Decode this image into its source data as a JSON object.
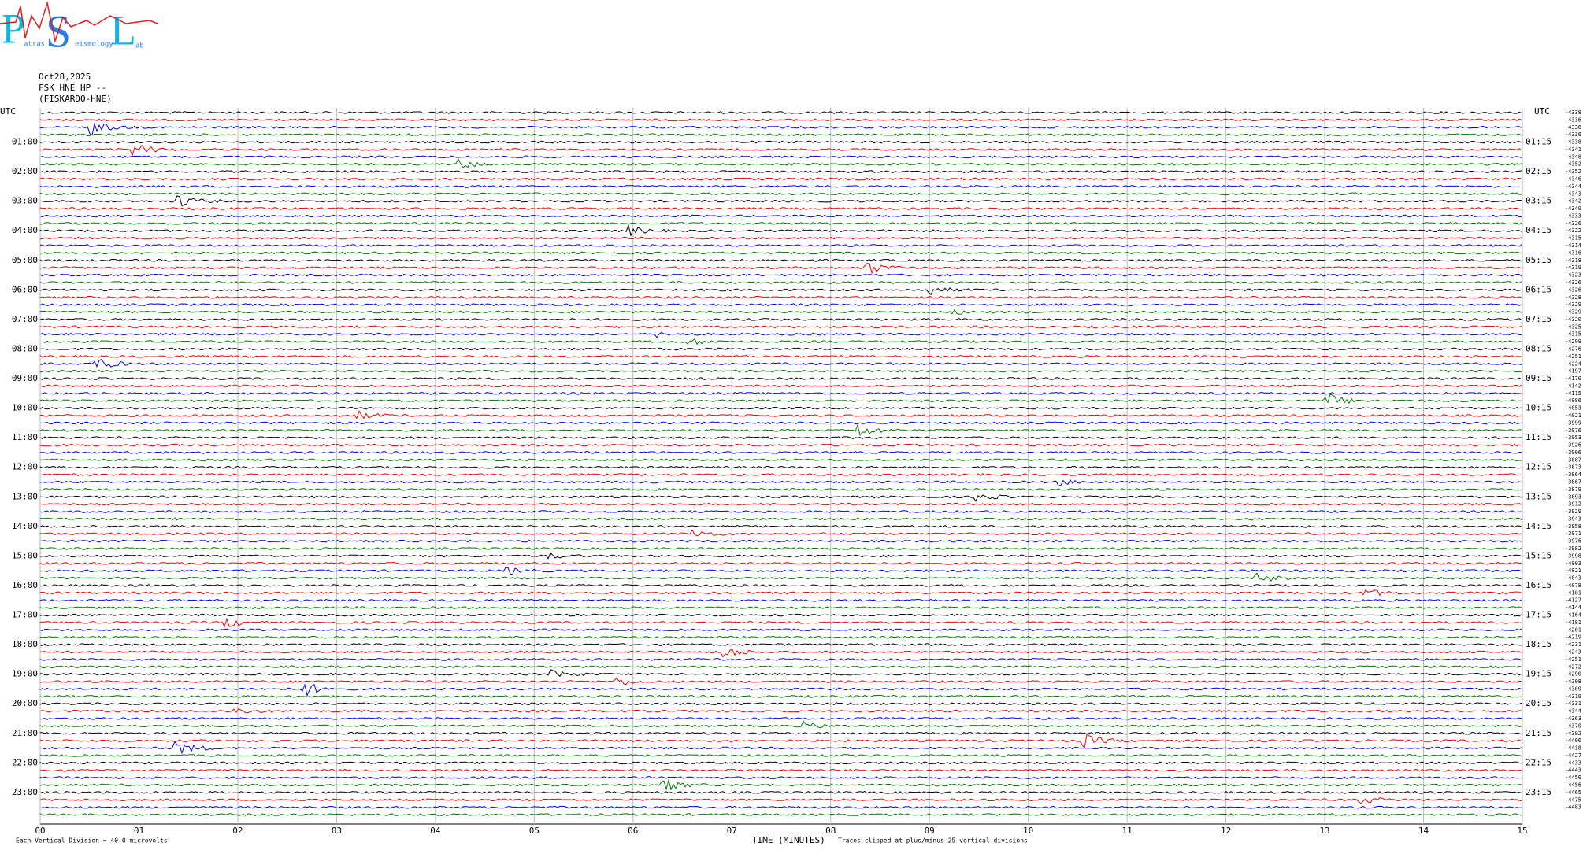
{
  "logo": {
    "p": "P",
    "s": "S",
    "l": "L",
    "small1": "atras",
    "small2": "eismology",
    "small3": "ab"
  },
  "header": {
    "date": "Oct28,2025",
    "station": "FSK HNE HP --",
    "site": "(FISKARDO-HNE)"
  },
  "left_axis": {
    "utc": "UTC",
    "times": [
      "01:00",
      "02:00",
      "03:00",
      "04:00",
      "05:00",
      "06:00",
      "07:00",
      "08:00",
      "09:00",
      "10:00",
      "11:00",
      "12:00",
      "13:00",
      "14:00",
      "15:00",
      "16:00",
      "17:00",
      "18:00",
      "19:00",
      "20:00",
      "21:00",
      "22:00",
      "23:00"
    ]
  },
  "right_axis": {
    "utc": "UTC",
    "times": [
      "01:15",
      "02:15",
      "03:15",
      "04:15",
      "05:15",
      "06:15",
      "07:15",
      "08:15",
      "09:15",
      "10:15",
      "11:15",
      "12:15",
      "13:15",
      "14:15",
      "15:15",
      "16:15",
      "17:15",
      "18:15",
      "19:15",
      "20:15",
      "21:15",
      "22:15",
      "23:15"
    ]
  },
  "offsets": [
    "-4338",
    "-4336",
    "-4336",
    "-4336",
    "-4338",
    "-4341",
    "-4348",
    "-4352",
    "-4352",
    "-4346",
    "-4344",
    "-4343",
    "-4342",
    "-4340",
    "-4333",
    "-4326",
    "-4322",
    "-4315",
    "-4314",
    "-4316",
    "-4318",
    "-4319",
    "-4323",
    "-4326",
    "-4326",
    "-4328",
    "-4329",
    "-4329",
    "-4320",
    "-4325",
    "-4315",
    "-4299",
    "-4276",
    "-4251",
    "-4224",
    "-4197",
    "-4170",
    "-4142",
    "-4115",
    "-4086",
    "-4053",
    "-4021",
    "-3999",
    "-3976",
    "-3953",
    "-3926",
    "-3906",
    "-3887",
    "-3873",
    "-3864",
    "-3867",
    "-3879",
    "-3893",
    "-3912",
    "-3929",
    "-3943",
    "-3958",
    "-3971",
    "-3976",
    "-3982",
    "-3998",
    "-4003",
    "-4021",
    "-4043",
    "-4078",
    "-4101",
    "-4127",
    "-4144",
    "-4164",
    "-4181",
    "-4201",
    "-4219",
    "-4231",
    "-4243",
    "-4251",
    "-4272",
    "-4290",
    "-4308",
    "-4309",
    "-4319",
    "-4331",
    "-4344",
    "-4363",
    "-4370",
    "-4392",
    "-4406",
    "-4418",
    "-4427",
    "-4433",
    "-4443",
    "-4450",
    "-4456",
    "-4465",
    "-4475",
    "-4483"
  ],
  "x_axis": {
    "ticks": [
      "00",
      "01",
      "02",
      "03",
      "04",
      "05",
      "06",
      "07",
      "08",
      "09",
      "10",
      "11",
      "12",
      "13",
      "14",
      "15"
    ],
    "label": "TIME (MINUTES)"
  },
  "footer": {
    "division": "Each Vertical Division =   40.0 microvolts",
    "clipped": "Traces clipped at plus/minus 25 vertical divisions"
  }
}
